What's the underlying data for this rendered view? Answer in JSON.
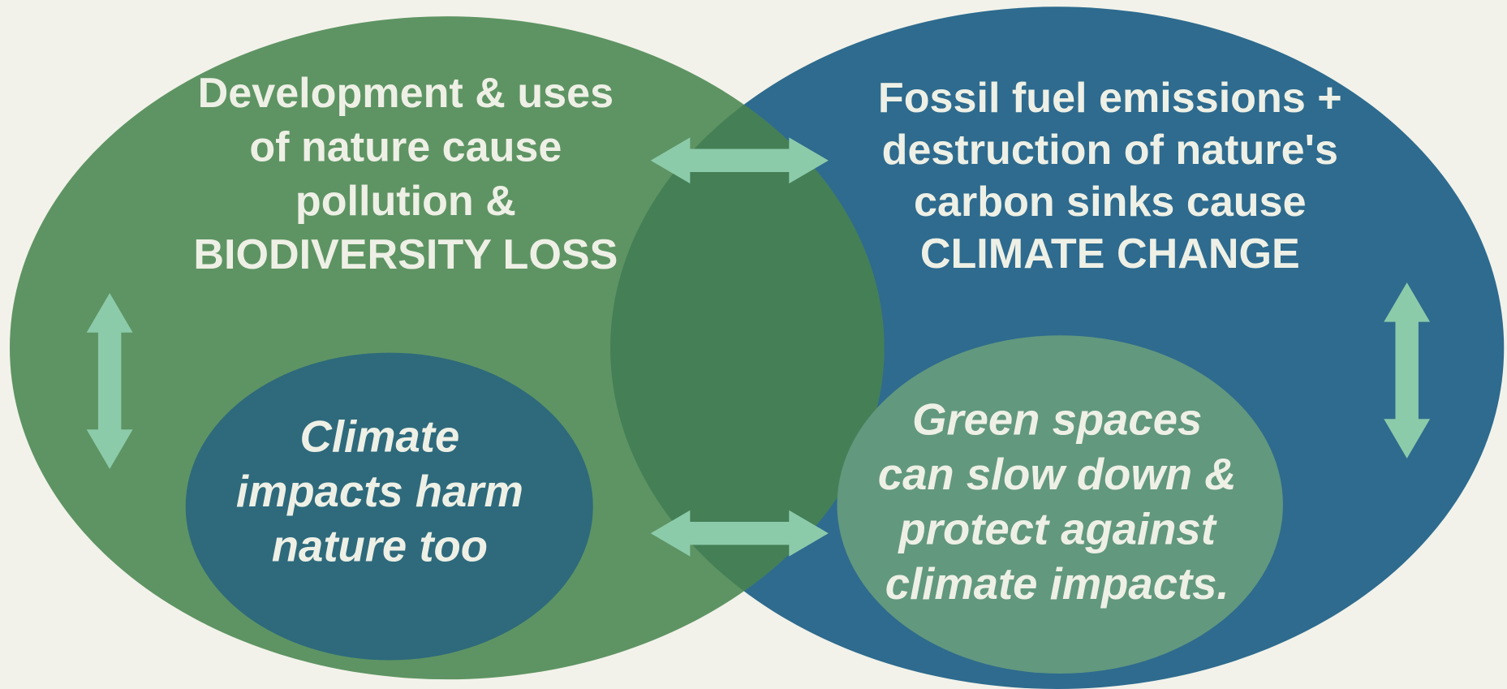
{
  "left_circle": {
    "lines": [
      "Development & uses",
      "of nature cause",
      "pollution &",
      "BIODIVERSITY LOSS"
    ]
  },
  "right_circle": {
    "lines": [
      "Fossil fuel emissions +",
      "destruction of nature's",
      "carbon sinks cause",
      "CLIMATE CHANGE"
    ]
  },
  "left_inner": {
    "lines": [
      "Climate",
      "impacts harm",
      "nature too"
    ]
  },
  "right_inner": {
    "lines": [
      "Green spaces",
      "can slow down &",
      "protect against",
      "climate impacts."
    ]
  }
}
